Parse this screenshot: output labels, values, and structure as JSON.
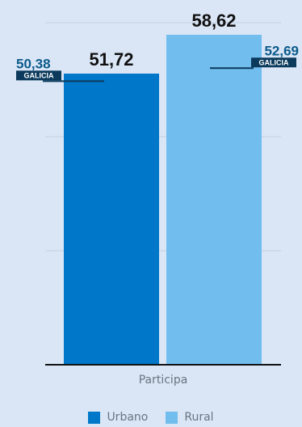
{
  "chart_data": {
    "type": "bar",
    "categories": [
      "Participa"
    ],
    "series": [
      {
        "name": "Urbano",
        "values": [
          51.72
        ],
        "label": "51,72",
        "color": "#0077c8"
      },
      {
        "name": "Rural",
        "values": [
          58.62
        ],
        "label": "58,62",
        "color": "#70bdee"
      }
    ],
    "reference_lines": [
      {
        "series": "Urbano",
        "value": 50.38,
        "label": "50,38",
        "tag": "GALICIA"
      },
      {
        "series": "Rural",
        "value": 52.69,
        "label": "52,69",
        "tag": "GALICIA"
      }
    ],
    "ylim": [
      0,
      60
    ],
    "grid": true,
    "legend_position": "bottom",
    "colors": {
      "background": "#dae6f6",
      "grid": "#c3d0df",
      "axis": "#111111",
      "reference_line": "#0b3a5c",
      "reference_value": "#0b5a8a",
      "tag_background": "#0b3a5c",
      "tag_text": "#ffffff",
      "value_label": "#111111",
      "category_label": "#6b7480"
    }
  }
}
